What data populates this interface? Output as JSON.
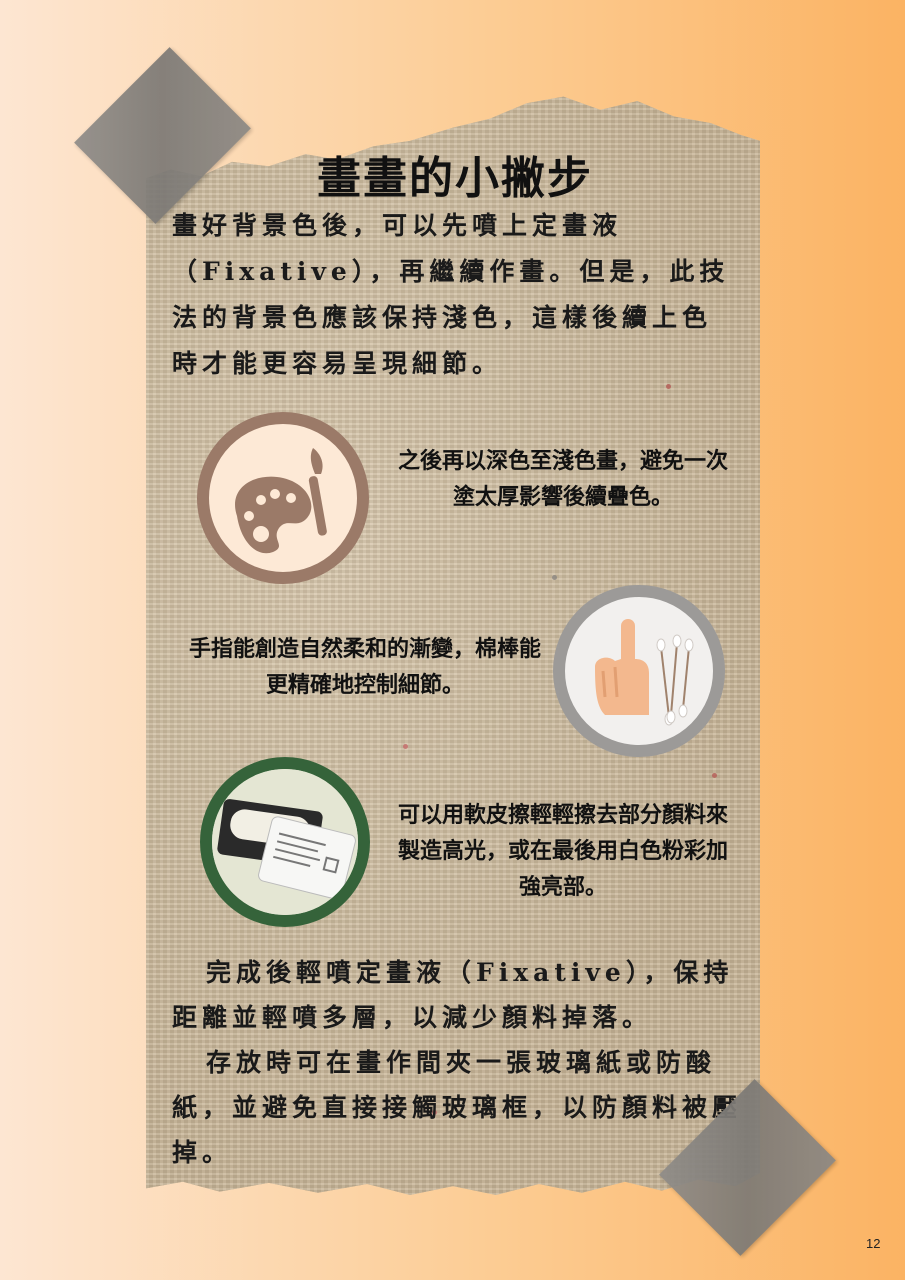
{
  "title": "畫畫的小撇步",
  "intro": "畫好背景色後，可以先噴上定畫液（Fixative），再繼續作畫。但是，此技法的背景色應該保持淺色，這樣後續上色時才能更容易呈現細節。",
  "tips": [
    {
      "text": "之後再以深色至淺色畫，避免一次塗太厚影響後續疊色。",
      "icon": "palette-icon"
    },
    {
      "text": "手指能創造自然柔和的漸變，棉棒能更精確地控制細節。",
      "icon": "finger-cotton-swab-icon"
    },
    {
      "text": "可以用軟皮擦輕輕擦去部分顏料來製造高光，或在最後用白色粉彩加強亮部。",
      "icon": "kneaded-eraser-icon"
    }
  ],
  "outro": [
    "完成後輕噴定畫液（Fixative），保持距離並輕噴多層，以減少顏料掉落。",
    "存放時可在畫作間夾一張玻璃紙或防酸紙，並避免直接接觸玻璃框，以防顏料被壓掉。"
  ],
  "page_number": "12",
  "colors": {
    "palette_circle": "#9b7a68",
    "finger_circle": "#9c9a98",
    "eraser_circle": "#35633a"
  }
}
